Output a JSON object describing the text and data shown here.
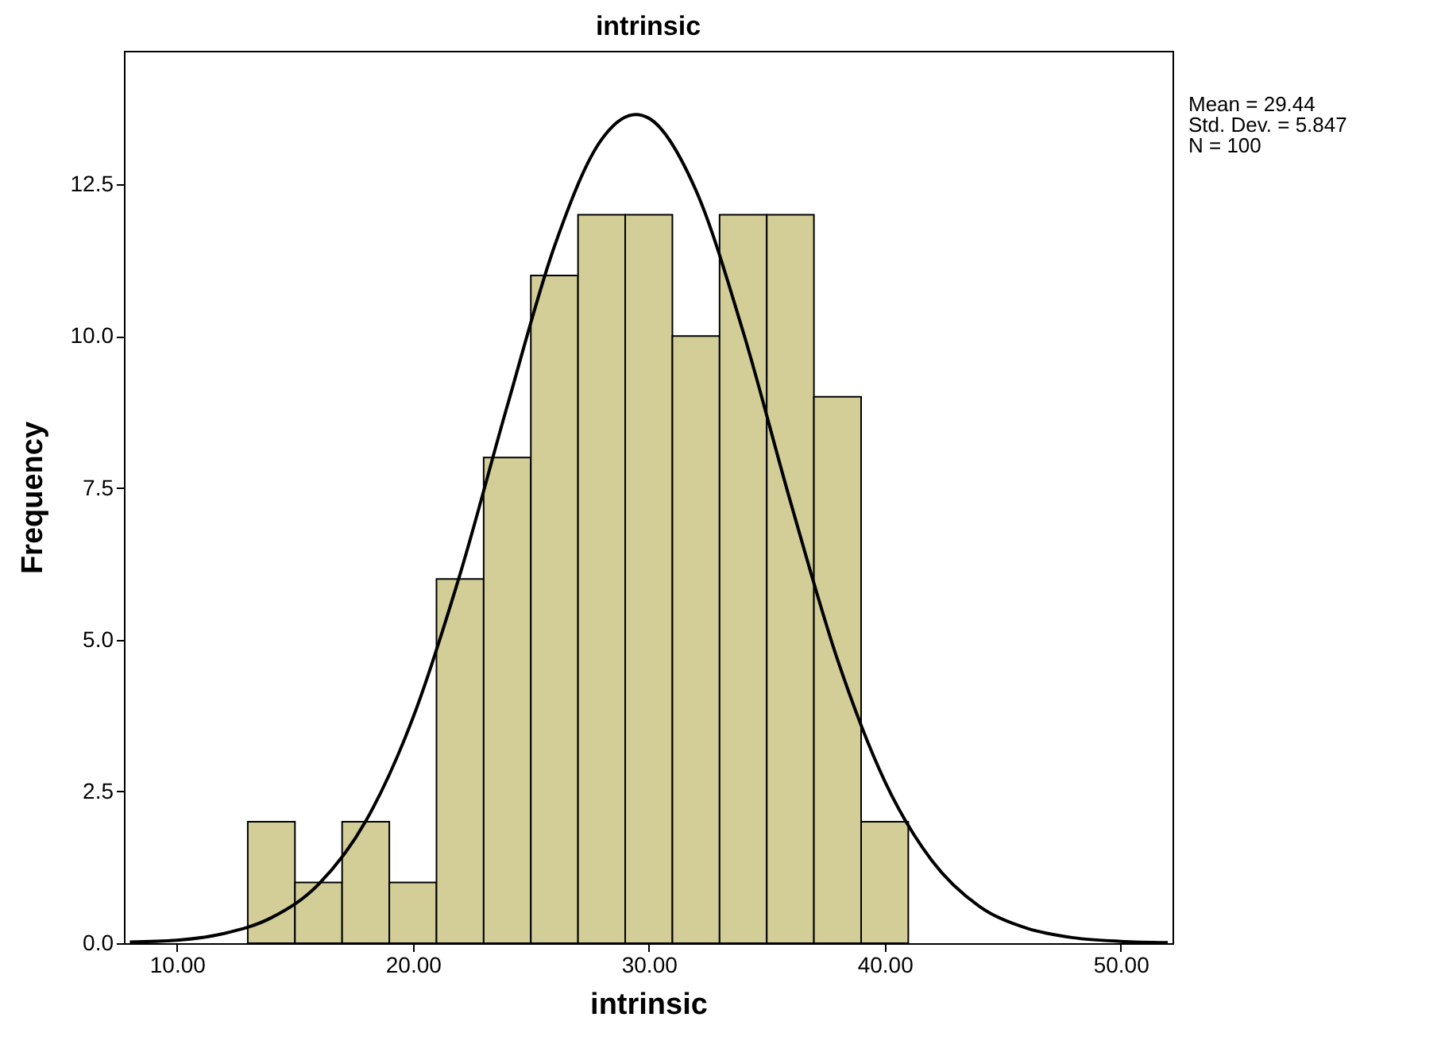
{
  "chart_data": {
    "type": "histogram",
    "title": "intrinsic",
    "xlabel": "intrinsic",
    "ylabel": "Frequency",
    "bins": [
      13,
      15,
      17,
      19,
      21,
      23,
      25,
      27,
      29,
      31,
      33,
      35,
      37,
      39,
      41
    ],
    "values": [
      2,
      1,
      2,
      1,
      6,
      8,
      11,
      12,
      12,
      10,
      12,
      12,
      9,
      2
    ],
    "color": "#d3ce97",
    "series": [
      {
        "type": "line",
        "color": "#000000",
        "x": [
          8,
          10,
          12,
          14,
          16,
          18,
          20,
          22,
          24,
          26,
          28,
          29.44,
          30,
          32,
          34,
          36,
          38,
          40,
          42,
          44,
          46,
          48,
          50,
          52
        ],
        "values": [
          0.02,
          0.05,
          0.16,
          0.42,
          0.97,
          2.01,
          3.71,
          6.08,
          8.85,
          11.48,
          13.24,
          13.65,
          13.59,
          12.4,
          10.07,
          7.28,
          4.67,
          2.67,
          1.36,
          0.61,
          0.25,
          0.09,
          0.03,
          0.01
        ]
      }
    ],
    "xlim": [
      7.75,
      52.2
    ],
    "ylim": [
      0,
      14.7
    ],
    "xticks": [
      {
        "value": 10,
        "label": "10.00"
      },
      {
        "value": 20,
        "label": "20.00"
      },
      {
        "value": 30,
        "label": "30.00"
      },
      {
        "value": 40,
        "label": "40.00"
      },
      {
        "value": 50,
        "label": "50.00"
      }
    ],
    "yticks": [
      {
        "value": 0,
        "label": "0.0"
      },
      2.5,
      {
        "value": 5,
        "label": "5.0"
      },
      7.5,
      {
        "value": 10,
        "label": "10.0"
      },
      12.5
    ],
    "grid": false,
    "annotations": [
      "Mean = 29.44",
      "Std. Dev. = 5.847",
      "N = 100"
    ]
  }
}
